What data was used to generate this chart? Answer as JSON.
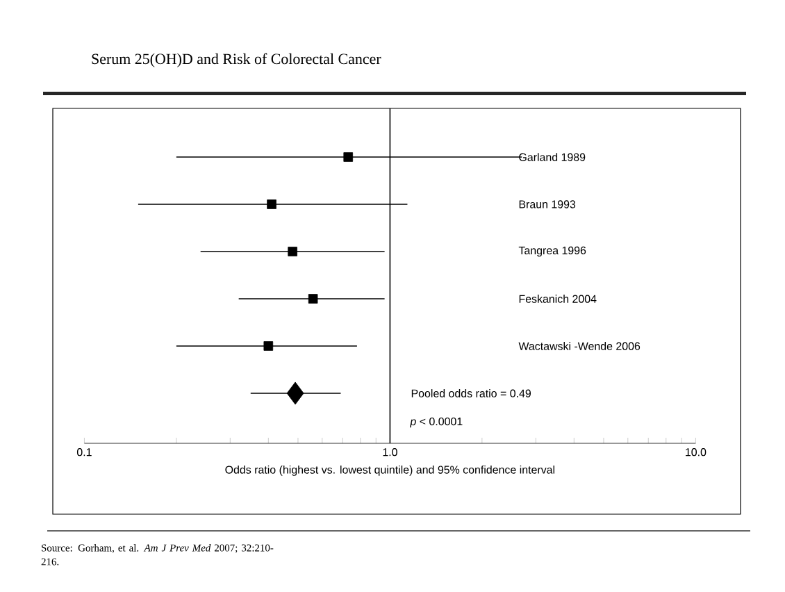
{
  "chart_data": {
    "type": "scatter",
    "title": "Serum 25(OH)D and Risk of Colorectal Cancer",
    "xlabel": "Odds ratio (highest vs. lowest quintile) and 95% confidence interval",
    "categories": [
      "Garland 1989",
      "Braun 1993",
      "Tangrea 1996",
      "Feskanich 2004",
      "Wactawski -Wende 2006",
      null
    ],
    "orientation": "horizontal",
    "log": "x",
    "xlim": [
      0.1,
      10
    ],
    "xticks": [
      {
        "value": 0.1,
        "label": "0.1"
      },
      {
        "value": 0.2,
        "label": null
      },
      {
        "value": 0.3,
        "label": null
      },
      {
        "value": 0.4,
        "label": null
      },
      {
        "value": 0.5,
        "label": null
      },
      {
        "value": 0.6,
        "label": null
      },
      {
        "value": 0.7,
        "label": null
      },
      {
        "value": 0.8,
        "label": null
      },
      {
        "value": 0.9,
        "label": null
      },
      {
        "value": 1,
        "label": "1.0"
      },
      {
        "value": 2,
        "label": null
      },
      {
        "value": 3,
        "label": null
      },
      {
        "value": 4,
        "label": null
      },
      {
        "value": 5,
        "label": null
      },
      {
        "value": 6,
        "label": null
      },
      {
        "value": 7,
        "label": null
      },
      {
        "value": 8,
        "label": null
      },
      {
        "value": 9,
        "label": null
      },
      {
        "value": 10,
        "label": "10.0"
      }
    ],
    "series": [
      {
        "color": "#000000",
        "marker": "square",
        "values": [
          0.73,
          0.41,
          0.48,
          0.56,
          0.4,
          null
        ],
        "errors": [
          [
            0.2,
            2.7
          ],
          [
            0.15,
            1.14
          ],
          [
            0.24,
            0.96
          ],
          [
            0.32,
            0.96
          ],
          [
            0.2,
            0.78
          ],
          null
        ]
      },
      {
        "name": "Pooled odds ratio = 0.49",
        "color": "#000000",
        "marker": "diamond",
        "values": [
          null,
          null,
          null,
          null,
          null,
          0.49
        ],
        "errors": [
          null,
          null,
          null,
          null,
          null,
          [
            0.35,
            0.69
          ]
        ]
      }
    ],
    "ref_lines": [
      {
        "axis": "x",
        "value": 1
      }
    ],
    "annotations": [
      "*p* < 0.0001",
      "Source:  Gorham, et al.  *Am J Prev Med* 2007; 32:210-216."
    ]
  }
}
